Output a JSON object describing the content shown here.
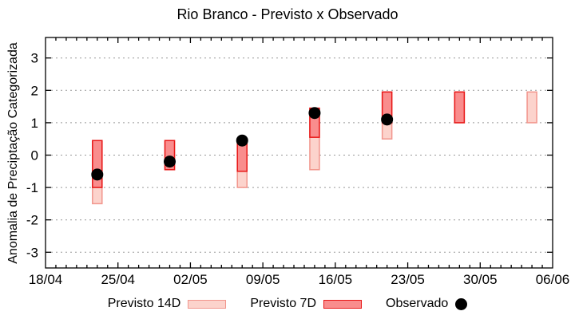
{
  "chart_data": {
    "type": "range-bar",
    "title": "Rio Branco - Previsto x Observado",
    "ylabel": "Anomalia de Preciptação Categorizada",
    "x_tick_labels": [
      "18/04",
      "25/04",
      "02/05",
      "09/05",
      "16/05",
      "23/05",
      "30/05",
      "06/06"
    ],
    "x_tick_days": [
      0,
      7,
      14,
      21,
      28,
      35,
      42,
      49
    ],
    "x_total_days": 49,
    "x_minor_step_days": 1,
    "y_ticks": [
      3,
      2,
      1,
      0,
      -1,
      -2,
      -3
    ],
    "ylim": [
      -3.5,
      3.6
    ],
    "grid": "horizontal-dotted",
    "legend_position": "bottom",
    "series": [
      {
        "id": "p14",
        "label": "Previsto 14D",
        "type": "range"
      },
      {
        "id": "p7",
        "label": "Previsto 7D",
        "type": "range"
      },
      {
        "id": "obs",
        "label": "Observado",
        "type": "point"
      }
    ],
    "bars": [
      {
        "date": "23/04",
        "day": 5,
        "p14": [
          -1.5,
          0.45
        ],
        "p7": [
          -1.0,
          0.45
        ],
        "obs": -0.6
      },
      {
        "date": "30/04",
        "day": 12,
        "p14": [
          -0.45,
          0.45
        ],
        "p7": [
          -0.45,
          0.45
        ],
        "obs": -0.2
      },
      {
        "date": "07/05",
        "day": 19,
        "p14": [
          -1.0,
          0.45
        ],
        "p7": [
          -0.5,
          0.45
        ],
        "obs": 0.45
      },
      {
        "date": "14/05",
        "day": 26,
        "p14": [
          -0.45,
          1.45
        ],
        "p7": [
          0.55,
          1.45
        ],
        "obs": 1.3
      },
      {
        "date": "21/05",
        "day": 33,
        "p14": [
          0.5,
          1.95
        ],
        "p7": [
          1.0,
          1.95
        ],
        "obs": 1.1
      },
      {
        "date": "28/05",
        "day": 40,
        "p14": [
          1.0,
          1.95
        ],
        "p7": [
          1.0,
          1.95
        ],
        "obs": null
      },
      {
        "date": "04/06",
        "day": 47,
        "p14": [
          1.0,
          1.95
        ],
        "p7": null,
        "obs": null
      }
    ],
    "colors": {
      "p14_fill": "#fcd3cc",
      "p14_border": "#f2968d",
      "p7_fill": "#f98d8d",
      "p7_border": "#e81818",
      "obs": "#000000",
      "grid": "#999999",
      "axis": "#000000",
      "background": "#ffffff"
    }
  }
}
